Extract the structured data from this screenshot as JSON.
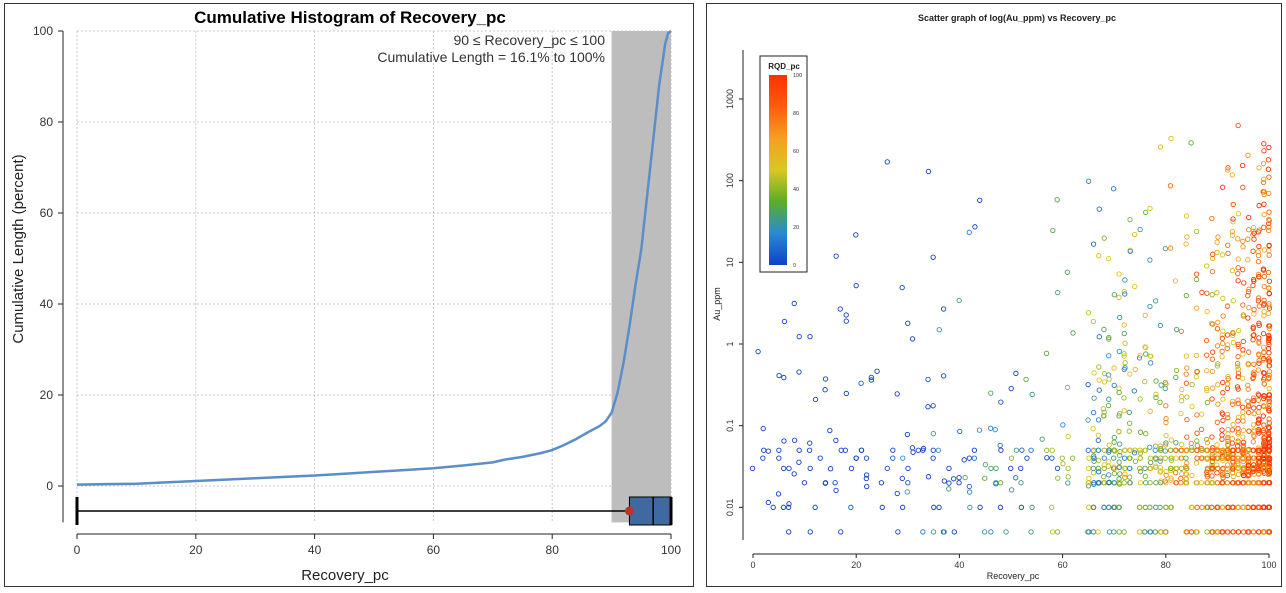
{
  "chart_data": [
    {
      "type": "line",
      "title": "Cumulative Histogram of Recovery_pc",
      "xlabel": "Recovery_pc",
      "ylabel": "Cumulative Length (percent)",
      "xlim": [
        0,
        100
      ],
      "ylim": [
        -8,
        100
      ],
      "x_ticks": [
        "0",
        "20",
        "40",
        "60",
        "80",
        "100"
      ],
      "y_ticks": [
        "0",
        "20",
        "40",
        "60",
        "80",
        "100"
      ],
      "grid": true,
      "annotation_range": "90 ≤ Recovery_pc ≤ 100",
      "annotation_length": "Cumulative Length = 16.1% to 100%",
      "highlight_range": [
        90,
        100
      ],
      "series": [
        {
          "name": "Cumulative Length",
          "x": [
            0,
            5,
            10,
            15,
            20,
            25,
            30,
            35,
            40,
            45,
            50,
            55,
            60,
            65,
            70,
            72,
            75,
            78,
            80,
            82,
            84,
            86,
            88,
            89,
            90,
            91,
            92,
            93,
            94,
            95,
            96,
            97,
            98,
            99,
            99.5,
            100
          ],
          "y": [
            0.3,
            0.4,
            0.5,
            0.8,
            1.1,
            1.4,
            1.7,
            2.0,
            2.3,
            2.7,
            3.1,
            3.5,
            3.9,
            4.5,
            5.2,
            5.8,
            6.4,
            7.2,
            7.9,
            9.0,
            10.3,
            11.8,
            13.2,
            14.2,
            16.1,
            20.5,
            27,
            35,
            44,
            52,
            64,
            76,
            88,
            97,
            99.5,
            100
          ]
        }
      ],
      "boxplot": {
        "min": 0,
        "q1": 93,
        "mean": 93,
        "median": 97,
        "q3": 100,
        "max": 100
      }
    },
    {
      "type": "scatter",
      "title": "Scatter graph of log(Au_ppm) vs Recovery_pc",
      "xlabel": "Recovery_pc",
      "ylabel": "Au_ppm",
      "xlim": [
        0,
        100
      ],
      "ylim_log10": [
        -2.4,
        3.6
      ],
      "x_ticks": [
        "0",
        "20",
        "40",
        "60",
        "80",
        "100"
      ],
      "y_ticks": [
        "0.01",
        "0.1",
        "1",
        "10",
        "100",
        "1000"
      ],
      "legend_title": "RQD_pc",
      "legend_ticks": [
        "0",
        "20",
        "40",
        "60",
        "80",
        "100"
      ],
      "color_scale": [
        "#1040c8",
        "#2a8ad0",
        "#5cac2a",
        "#d9c820",
        "#f4a020",
        "#ff5a10",
        "#ff3000"
      ],
      "point_count": 1600,
      "detection_floor_au": [
        0.005,
        0.01,
        0.02,
        0.03,
        0.04,
        0.05
      ]
    }
  ]
}
